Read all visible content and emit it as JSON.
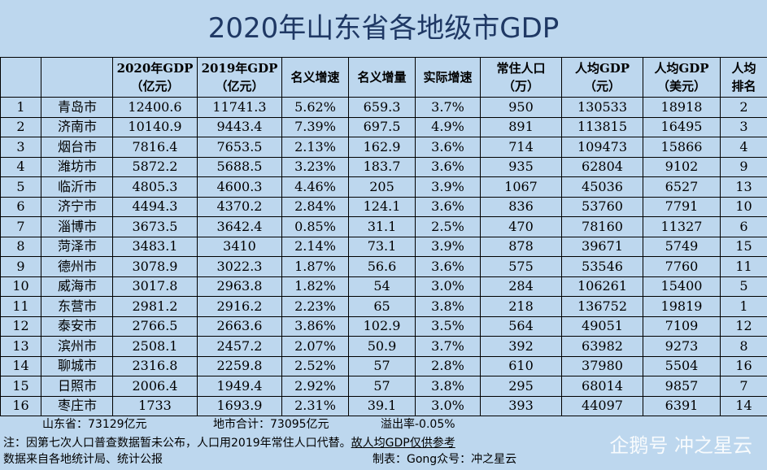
{
  "title": "2020年山东省各地级市GDP",
  "headers": [
    {
      "line1": "",
      "line2": ""
    },
    {
      "line1": "",
      "line2": ""
    },
    {
      "line1": "2020年GDP",
      "line2": "（亿元）"
    },
    {
      "line1": "2019年GDP",
      "line2": "（亿元）"
    },
    {
      "line1": "名义增速",
      "line2": ""
    },
    {
      "line1": "名义增量",
      "line2": ""
    },
    {
      "line1": "实际增速",
      "line2": ""
    },
    {
      "line1": "常住人口",
      "line2": "（万）"
    },
    {
      "line1": "人均GDP",
      "line2": "（元）"
    },
    {
      "line1": "人均GDP",
      "line2": "（美元）"
    },
    {
      "line1": "人均",
      "line2": "排名"
    }
  ],
  "rows": [
    [
      "1",
      "青岛市",
      "12400.6",
      "11741.3",
      "5.62%",
      "659.3",
      "3.7%",
      "950",
      "130533",
      "18918",
      "2"
    ],
    [
      "2",
      "济南市",
      "10140.9",
      "9443.4",
      "7.39%",
      "697.5",
      "4.9%",
      "891",
      "113815",
      "16495",
      "3"
    ],
    [
      "3",
      "烟台市",
      "7816.4",
      "7653.5",
      "2.13%",
      "162.9",
      "3.6%",
      "714",
      "109473",
      "15866",
      "4"
    ],
    [
      "4",
      "潍坊市",
      "5872.2",
      "5688.5",
      "3.23%",
      "183.7",
      "3.6%",
      "935",
      "62804",
      "9102",
      "9"
    ],
    [
      "5",
      "临沂市",
      "4805.3",
      "4600.3",
      "4.46%",
      "205",
      "3.9%",
      "1067",
      "45036",
      "6527",
      "13"
    ],
    [
      "6",
      "济宁市",
      "4494.3",
      "4370.2",
      "2.84%",
      "124.1",
      "3.6%",
      "836",
      "53760",
      "7791",
      "10"
    ],
    [
      "7",
      "淄博市",
      "3673.5",
      "3642.4",
      "0.85%",
      "31.1",
      "2.5%",
      "470",
      "78160",
      "11327",
      "6"
    ],
    [
      "8",
      "菏泽市",
      "3483.1",
      "3410",
      "2.14%",
      "73.1",
      "3.9%",
      "878",
      "39671",
      "5749",
      "15"
    ],
    [
      "9",
      "德州市",
      "3078.9",
      "3022.3",
      "1.87%",
      "56.6",
      "3.6%",
      "575",
      "53546",
      "7760",
      "11"
    ],
    [
      "10",
      "威海市",
      "3017.8",
      "2963.8",
      "1.82%",
      "54",
      "3.0%",
      "284",
      "106261",
      "15400",
      "5"
    ],
    [
      "11",
      "东营市",
      "2981.2",
      "2916.2",
      "2.23%",
      "65",
      "3.8%",
      "218",
      "136752",
      "19819",
      "1"
    ],
    [
      "12",
      "泰安市",
      "2766.5",
      "2663.6",
      "3.86%",
      "102.9",
      "3.5%",
      "564",
      "49051",
      "7109",
      "12"
    ],
    [
      "13",
      "滨州市",
      "2508.1",
      "2457.2",
      "2.07%",
      "50.9",
      "3.7%",
      "392",
      "63982",
      "9273",
      "8"
    ],
    [
      "14",
      "聊城市",
      "2316.8",
      "2259.8",
      "2.52%",
      "57",
      "2.8%",
      "610",
      "37980",
      "5504",
      "16"
    ],
    [
      "15",
      "日照市",
      "2006.4",
      "1949.4",
      "2.92%",
      "57",
      "3.8%",
      "295",
      "68014",
      "9857",
      "7"
    ],
    [
      "16",
      "枣庄市",
      "1733",
      "1693.9",
      "2.31%",
      "39.1",
      "3.0%",
      "393",
      "44097",
      "6391",
      "14"
    ]
  ],
  "summary": {
    "province": "山东省：73129亿元",
    "city_total": "地市合计：73095亿元",
    "overflow": "溢出率-0.05%"
  },
  "note": {
    "text": "注：因第七次人口普查数据暂未公布，人口用2019年常住人口代替。",
    "emphasis": "故人均GDP仅供参考"
  },
  "source": {
    "left": "数据来自各地统计局、统计公报",
    "right": "制表：Gong众号：冲之星云"
  },
  "watermark": "企鹅号 冲之星云"
}
